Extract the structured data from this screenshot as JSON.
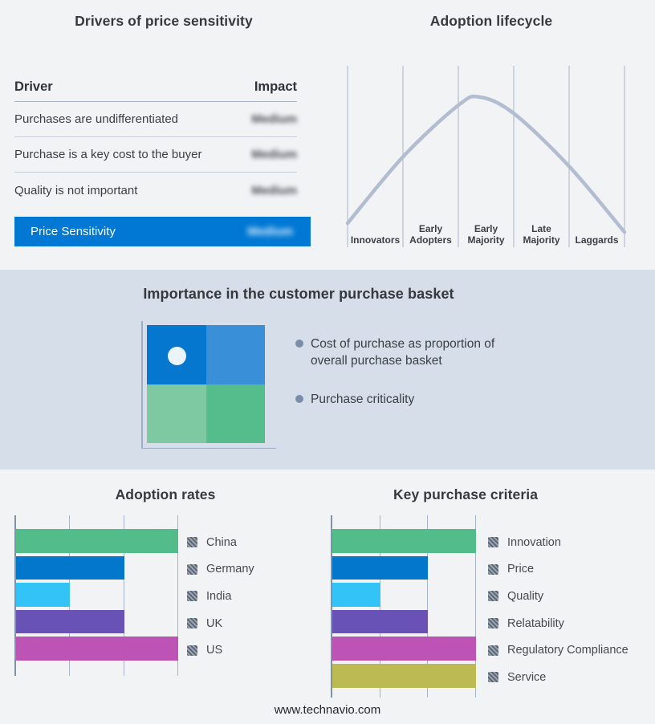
{
  "page": {
    "footer_url": "www.technavio.com",
    "background": "#f1f3f5",
    "band_background": "#d5dee9"
  },
  "drivers_panel": {
    "title": "Drivers of price sensitivity",
    "header": {
      "driver": "Driver",
      "impact": "Impact"
    },
    "rows": [
      {
        "driver": "Purchases are undifferentiated",
        "impact": "Medium",
        "impact_redacted": true
      },
      {
        "driver": "Purchase is a key cost to the buyer",
        "impact": "Medium",
        "impact_redacted": true
      },
      {
        "driver": "Quality is not important",
        "impact": "Medium",
        "impact_redacted": true
      }
    ],
    "summary": {
      "label": "Price Sensitivity",
      "impact": "Medium",
      "impact_redacted": true,
      "bar_color": "#0078d4"
    }
  },
  "purchase_basket": {
    "title": "Importance in the customer purchase basket",
    "bullets": [
      "Cost of purchase as proportion of overall purchase basket",
      "Purchase criticality"
    ],
    "bullet_color": "#7b8ea9",
    "quadrant_colors": {
      "top_left": "#0677cf",
      "top_right": "#3990d8",
      "bottom_left": "#7ec9a2",
      "bottom_right": "#54bd8b",
      "marker_dot": "#ecf4fb"
    }
  },
  "chart_data": [
    {
      "type": "line",
      "title": "Adoption lifecycle",
      "x_categories": [
        "Innovators",
        "Early Adopters",
        "Early Majority",
        "Late Majority",
        "Laggards"
      ],
      "curve_color": "#b2bdd1",
      "grid": true,
      "legend_position": "none",
      "xlabel": "",
      "ylabel": "",
      "curve_points": [
        [
          0,
          0.07
        ],
        [
          0.2,
          0.56
        ],
        [
          0.4,
          0.94
        ],
        [
          0.478,
          1.0
        ],
        [
          0.6,
          0.88
        ],
        [
          0.8,
          0.49
        ],
        [
          1.0,
          0.005
        ]
      ],
      "note": "Qualitative bell-shaped adoption curve peaking in Early Majority; no numeric axes shown"
    },
    {
      "type": "bar",
      "orientation": "horizontal",
      "title": "Adoption rates",
      "categories": [
        "China",
        "Germany",
        "India",
        "UK",
        "US"
      ],
      "values": [
        3,
        2,
        1,
        2,
        3
      ],
      "xlim": [
        0,
        3
      ],
      "colors": [
        "#53bc8b",
        "#0377cc",
        "#33c3f7",
        "#6852b5",
        "#bd53b4"
      ],
      "grid": true,
      "legend_position": "right",
      "note": "No numeric tick labels; bar lengths read in gridline units (max 3)"
    },
    {
      "type": "bar",
      "orientation": "horizontal",
      "title": "Key purchase criteria",
      "categories": [
        "Innovation",
        "Price",
        "Quality",
        "Relatability",
        "Regulatory Compliance",
        "Service"
      ],
      "values": [
        3,
        2,
        1,
        2,
        3,
        3
      ],
      "xlim": [
        0,
        3
      ],
      "colors": [
        "#53bc8b",
        "#0377cc",
        "#33c3f7",
        "#6852b5",
        "#bd53b4",
        "#bcba52"
      ],
      "grid": true,
      "legend_position": "right",
      "note": "No numeric tick labels; bar lengths read in gridline units (max 3)"
    }
  ]
}
